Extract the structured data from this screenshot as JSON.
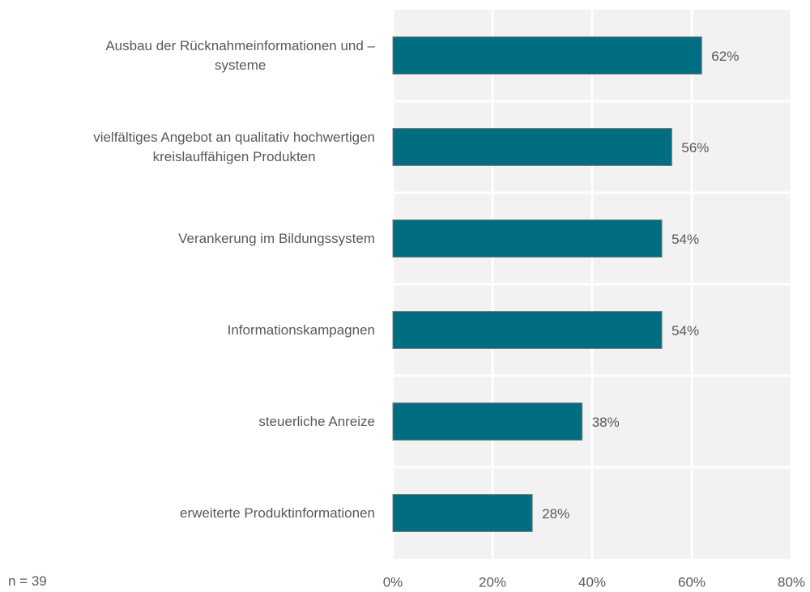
{
  "chart_data": {
    "type": "bar",
    "orientation": "horizontal",
    "categories": [
      "Ausbau der Rücknahmeinformationen und –\nsysteme",
      "vielfältiges Angebot an qualitativ hochwertigen\nkreislauffähigen Produkten",
      "Verankerung im Bildungssystem",
      "Informationskampagnen",
      "steuerliche Anreize",
      "erweiterte Produktinformationen"
    ],
    "values": [
      62,
      56,
      54,
      54,
      38,
      28
    ],
    "value_labels": [
      "62%",
      "56%",
      "54%",
      "54%",
      "38%",
      "28%"
    ],
    "color": "#006e80",
    "xlim": [
      0,
      80
    ],
    "xticks": [
      {
        "value": 0,
        "label": "0%"
      },
      {
        "value": 20,
        "label": "20%"
      },
      {
        "value": 40,
        "label": "40%"
      },
      {
        "value": 60,
        "label": "60%"
      },
      {
        "value": 80,
        "label": "80%"
      }
    ],
    "grid": true,
    "note": "n = 39"
  }
}
